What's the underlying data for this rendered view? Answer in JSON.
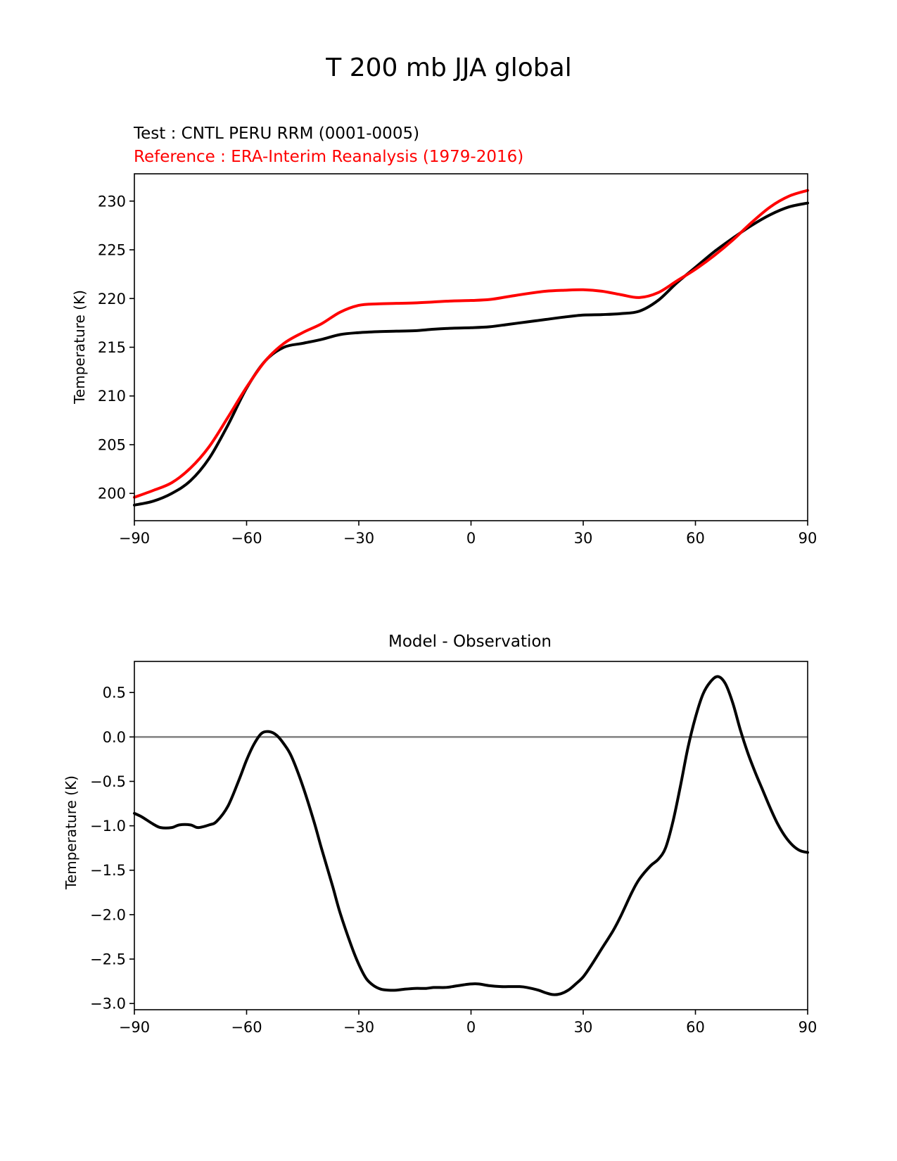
{
  "figure_title": "T 200 mb JJA global",
  "colors": {
    "test": "#000000",
    "reference": "#ff0000",
    "zero_line": "#808080",
    "axes": "#000000"
  },
  "chart_data": [
    {
      "type": "line",
      "test_label": "Test : CNTL PERU RRM (0001-0005)",
      "reference_label": "Reference : ERA-Interim Reanalysis (1979-2016)",
      "xlabel": "",
      "ylabel": "Temperature (K)",
      "xlim": [
        -90,
        90
      ],
      "ylim": [
        197.2,
        232.8
      ],
      "xticks": [
        -90,
        -60,
        -30,
        0,
        30,
        60,
        90
      ],
      "xtick_labels": [
        "−90",
        "−60",
        "−30",
        "0",
        "30",
        "60",
        "90"
      ],
      "yticks": [
        200,
        205,
        210,
        215,
        220,
        225,
        230
      ],
      "ytick_labels": [
        "200",
        "205",
        "210",
        "215",
        "220",
        "225",
        "230"
      ],
      "x": [
        -90,
        -85,
        -80,
        -75,
        -70,
        -65,
        -60,
        -55,
        -50,
        -45,
        -40,
        -35,
        -30,
        -25,
        -20,
        -15,
        -10,
        -5,
        0,
        5,
        10,
        15,
        20,
        25,
        30,
        35,
        40,
        45,
        50,
        55,
        60,
        65,
        70,
        75,
        80,
        85,
        90
      ],
      "series": [
        {
          "name": "Test",
          "values": [
            198.8,
            199.2,
            200.0,
            201.3,
            203.6,
            207.0,
            210.8,
            213.6,
            215.0,
            215.4,
            215.8,
            216.3,
            216.5,
            216.6,
            216.65,
            216.7,
            216.85,
            216.95,
            217.0,
            217.1,
            217.35,
            217.6,
            217.85,
            218.1,
            218.3,
            218.35,
            218.45,
            218.7,
            219.8,
            221.6,
            223.2,
            224.8,
            226.2,
            227.5,
            228.6,
            229.4,
            229.8
          ]
        },
        {
          "name": "Reference",
          "values": [
            199.6,
            200.3,
            201.1,
            202.6,
            204.8,
            207.8,
            210.9,
            213.6,
            215.4,
            216.5,
            217.4,
            218.6,
            219.3,
            219.45,
            219.5,
            219.55,
            219.65,
            219.75,
            219.8,
            219.9,
            220.2,
            220.5,
            220.75,
            220.85,
            220.9,
            220.75,
            220.4,
            220.1,
            220.6,
            221.8,
            223.0,
            224.4,
            226.0,
            227.8,
            229.4,
            230.5,
            231.1
          ]
        }
      ]
    },
    {
      "type": "line",
      "title": "Model - Observation",
      "xlabel": "",
      "ylabel": "Temperature (K)",
      "xlim": [
        -90,
        90
      ],
      "ylim": [
        -3.07,
        0.85
      ],
      "xticks": [
        -90,
        -60,
        -30,
        0,
        30,
        60,
        90
      ],
      "xtick_labels": [
        "−90",
        "−60",
        "−30",
        "0",
        "30",
        "60",
        "90"
      ],
      "yticks": [
        0.5,
        0.0,
        -0.5,
        -1.0,
        -1.5,
        -2.0,
        -2.5,
        -3.0
      ],
      "ytick_labels": [
        "0.5",
        "0.0",
        "−0.5",
        "−1.0",
        "−1.5",
        "−2.0",
        "−2.5",
        "−3.0"
      ],
      "zero_line": 0.0,
      "x": [
        -90,
        -88,
        -85,
        -83,
        -80,
        -78,
        -75,
        -73,
        -70,
        -68,
        -65,
        -62,
        -60,
        -58,
        -56,
        -54,
        -52,
        -50,
        -48,
        -45,
        -42,
        -40,
        -37,
        -35,
        -32,
        -30,
        -28,
        -26,
        -24,
        -22,
        -20,
        -18,
        -15,
        -12,
        -10,
        -7,
        -5,
        -2,
        0,
        2,
        5,
        8,
        10,
        13,
        15,
        18,
        20,
        22,
        24,
        26,
        28,
        30,
        32,
        35,
        38,
        40,
        43,
        45,
        48,
        50,
        52,
        54,
        56,
        58,
        60,
        62,
        64,
        66,
        68,
        70,
        72,
        74,
        76,
        78,
        80,
        82,
        84,
        86,
        88,
        90
      ],
      "series": [
        {
          "name": "Model - Observation",
          "values": [
            -0.86,
            -0.9,
            -0.98,
            -1.02,
            -1.02,
            -0.99,
            -0.99,
            -1.02,
            -0.99,
            -0.95,
            -0.78,
            -0.48,
            -0.26,
            -0.08,
            0.04,
            0.06,
            0.02,
            -0.08,
            -0.22,
            -0.55,
            -0.95,
            -1.25,
            -1.68,
            -1.98,
            -2.35,
            -2.56,
            -2.72,
            -2.8,
            -2.84,
            -2.85,
            -2.85,
            -2.84,
            -2.83,
            -2.83,
            -2.82,
            -2.82,
            -2.81,
            -2.79,
            -2.78,
            -2.78,
            -2.8,
            -2.81,
            -2.81,
            -2.81,
            -2.82,
            -2.85,
            -2.88,
            -2.9,
            -2.89,
            -2.85,
            -2.78,
            -2.7,
            -2.58,
            -2.38,
            -2.18,
            -2.02,
            -1.75,
            -1.6,
            -1.45,
            -1.38,
            -1.25,
            -0.95,
            -0.55,
            -0.12,
            0.22,
            0.48,
            0.62,
            0.68,
            0.6,
            0.38,
            0.08,
            -0.18,
            -0.4,
            -0.6,
            -0.8,
            -0.98,
            -1.12,
            -1.22,
            -1.28,
            -1.3
          ]
        }
      ]
    }
  ]
}
